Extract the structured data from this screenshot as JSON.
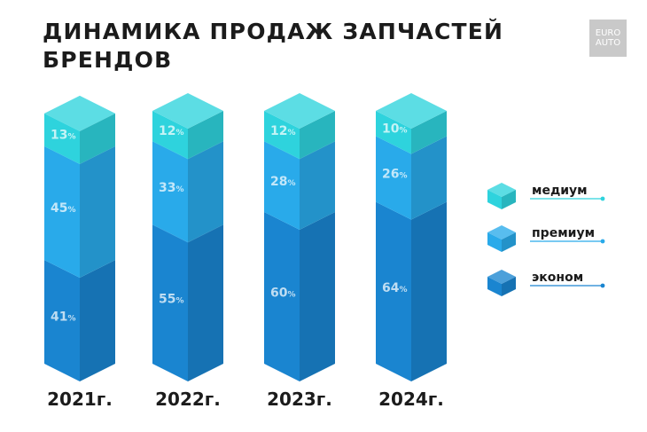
{
  "title": {
    "line1": "ДИНАМИКА ПРОДАЖ ЗАПЧАСТЕЙ",
    "line2": "БРЕНДОВ"
  },
  "logo": {
    "line1": "EURO",
    "line2": "AUTO"
  },
  "chart_data": {
    "type": "bar",
    "stacked": true,
    "categories": [
      "2021г.",
      "2022г.",
      "2023г.",
      "2024г."
    ],
    "unit": "%",
    "series": [
      {
        "name": "эконом",
        "values": [
          41,
          55,
          60,
          64
        ],
        "color": "#1a85d0"
      },
      {
        "name": "премиум",
        "values": [
          45,
          33,
          28,
          26
        ],
        "color": "#29aaea"
      },
      {
        "name": "медиум",
        "values": [
          13,
          12,
          12,
          10
        ],
        "color": "#2ed3dd"
      }
    ],
    "legend_order": [
      "медиум",
      "премиум",
      "эконом"
    ],
    "legend_position": "right",
    "grid": false
  }
}
